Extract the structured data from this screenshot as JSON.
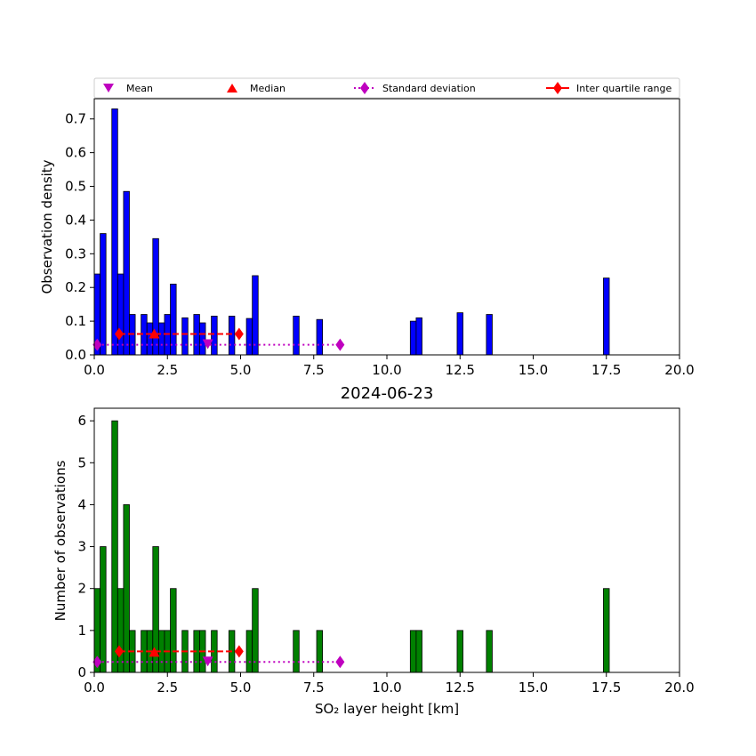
{
  "chart_data": [
    {
      "type": "bar",
      "title": "",
      "xlabel": "",
      "ylabel": "Observation density",
      "xlim": [
        0,
        20
      ],
      "ylim": [
        0,
        0.76
      ],
      "xticks": [
        "0.0",
        "2.5",
        "5.0",
        "7.5",
        "10.0",
        "12.5",
        "15.0",
        "17.5",
        "20.0"
      ],
      "yticks": [
        "0.0",
        "0.1",
        "0.2",
        "0.3",
        "0.4",
        "0.5",
        "0.6",
        "0.7"
      ],
      "bar_color": "#0000ff",
      "bins": [
        {
          "x0": 0.0,
          "x1": 0.2,
          "y": 0.24
        },
        {
          "x0": 0.2,
          "x1": 0.4,
          "y": 0.36
        },
        {
          "x0": 0.6,
          "x1": 0.8,
          "y": 0.73
        },
        {
          "x0": 0.8,
          "x1": 1.0,
          "y": 0.24
        },
        {
          "x0": 1.0,
          "x1": 1.2,
          "y": 0.485
        },
        {
          "x0": 1.2,
          "x1": 1.4,
          "y": 0.12
        },
        {
          "x0": 1.6,
          "x1": 1.8,
          "y": 0.12
        },
        {
          "x0": 1.8,
          "x1": 2.0,
          "y": 0.095
        },
        {
          "x0": 2.0,
          "x1": 2.2,
          "y": 0.345
        },
        {
          "x0": 2.2,
          "x1": 2.4,
          "y": 0.095
        },
        {
          "x0": 2.4,
          "x1": 2.6,
          "y": 0.12
        },
        {
          "x0": 2.6,
          "x1": 2.8,
          "y": 0.21
        },
        {
          "x0": 3.0,
          "x1": 3.2,
          "y": 0.11
        },
        {
          "x0": 3.4,
          "x1": 3.6,
          "y": 0.12
        },
        {
          "x0": 3.6,
          "x1": 3.8,
          "y": 0.095
        },
        {
          "x0": 4.0,
          "x1": 4.2,
          "y": 0.115
        },
        {
          "x0": 4.6,
          "x1": 4.8,
          "y": 0.115
        },
        {
          "x0": 5.2,
          "x1": 5.4,
          "y": 0.108
        },
        {
          "x0": 5.4,
          "x1": 5.6,
          "y": 0.235
        },
        {
          "x0": 6.8,
          "x1": 7.0,
          "y": 0.115
        },
        {
          "x0": 7.6,
          "x1": 7.8,
          "y": 0.105
        },
        {
          "x0": 10.8,
          "x1": 11.0,
          "y": 0.1
        },
        {
          "x0": 11.0,
          "x1": 11.2,
          "y": 0.11
        },
        {
          "x0": 12.4,
          "x1": 12.6,
          "y": 0.125
        },
        {
          "x0": 13.4,
          "x1": 13.6,
          "y": 0.12
        },
        {
          "x0": 17.4,
          "x1": 17.6,
          "y": 0.228
        }
      ],
      "stats": {
        "mean": {
          "x": 3.88,
          "y": 0.033
        },
        "median": {
          "x": 2.05,
          "y": 0.062
        },
        "std_range": {
          "x0": 0.1,
          "x1": 8.4,
          "y": 0.03
        },
        "iqr_range": {
          "x0": 0.85,
          "x1": 4.95,
          "y": 0.062
        }
      }
    },
    {
      "type": "bar",
      "title": "2024-06-23",
      "xlabel": "SO₂ layer height [km]",
      "ylabel": "Number of observations",
      "xlim": [
        0,
        20
      ],
      "ylim": [
        0,
        6.3
      ],
      "xticks": [
        "0.0",
        "2.5",
        "5.0",
        "7.5",
        "10.0",
        "12.5",
        "15.0",
        "17.5",
        "20.0"
      ],
      "yticks": [
        "0",
        "1",
        "2",
        "3",
        "4",
        "5",
        "6"
      ],
      "bar_color": "#008000",
      "bins": [
        {
          "x0": 0.0,
          "x1": 0.2,
          "y": 2
        },
        {
          "x0": 0.2,
          "x1": 0.4,
          "y": 3
        },
        {
          "x0": 0.6,
          "x1": 0.8,
          "y": 6
        },
        {
          "x0": 0.8,
          "x1": 1.0,
          "y": 2
        },
        {
          "x0": 1.0,
          "x1": 1.2,
          "y": 4
        },
        {
          "x0": 1.2,
          "x1": 1.4,
          "y": 1
        },
        {
          "x0": 1.6,
          "x1": 1.8,
          "y": 1
        },
        {
          "x0": 1.8,
          "x1": 2.0,
          "y": 1
        },
        {
          "x0": 2.0,
          "x1": 2.2,
          "y": 3
        },
        {
          "x0": 2.2,
          "x1": 2.4,
          "y": 1
        },
        {
          "x0": 2.4,
          "x1": 2.6,
          "y": 1
        },
        {
          "x0": 2.6,
          "x1": 2.8,
          "y": 2
        },
        {
          "x0": 3.0,
          "x1": 3.2,
          "y": 1
        },
        {
          "x0": 3.4,
          "x1": 3.6,
          "y": 1
        },
        {
          "x0": 3.6,
          "x1": 3.8,
          "y": 1
        },
        {
          "x0": 4.0,
          "x1": 4.2,
          "y": 1
        },
        {
          "x0": 4.6,
          "x1": 4.8,
          "y": 1
        },
        {
          "x0": 5.2,
          "x1": 5.4,
          "y": 1
        },
        {
          "x0": 5.4,
          "x1": 5.6,
          "y": 2
        },
        {
          "x0": 6.8,
          "x1": 7.0,
          "y": 1
        },
        {
          "x0": 7.6,
          "x1": 7.8,
          "y": 1
        },
        {
          "x0": 10.8,
          "x1": 11.0,
          "y": 1
        },
        {
          "x0": 11.0,
          "x1": 11.2,
          "y": 1
        },
        {
          "x0": 12.4,
          "x1": 12.6,
          "y": 1
        },
        {
          "x0": 13.4,
          "x1": 13.6,
          "y": 1
        },
        {
          "x0": 17.4,
          "x1": 17.6,
          "y": 2
        }
      ],
      "stats": {
        "mean": {
          "x": 3.88,
          "y": 0.27
        },
        "median": {
          "x": 2.05,
          "y": 0.48
        },
        "std_range": {
          "x0": 0.1,
          "x1": 8.4,
          "y": 0.25
        },
        "iqr_range": {
          "x0": 0.85,
          "x1": 4.95,
          "y": 0.5
        }
      }
    }
  ],
  "legend": {
    "placement": "top",
    "items": [
      {
        "label": "Mean",
        "marker": "triangle-down",
        "color": "#bf00bf"
      },
      {
        "label": "Median",
        "marker": "triangle-up",
        "color": "#ff0000"
      },
      {
        "label": "Standard deviation",
        "marker": "diamond-dotted-line",
        "color": "#bf00bf"
      },
      {
        "label": "Inter quartile range",
        "marker": "diamond-dashed-line",
        "color": "#ff0000"
      }
    ]
  }
}
